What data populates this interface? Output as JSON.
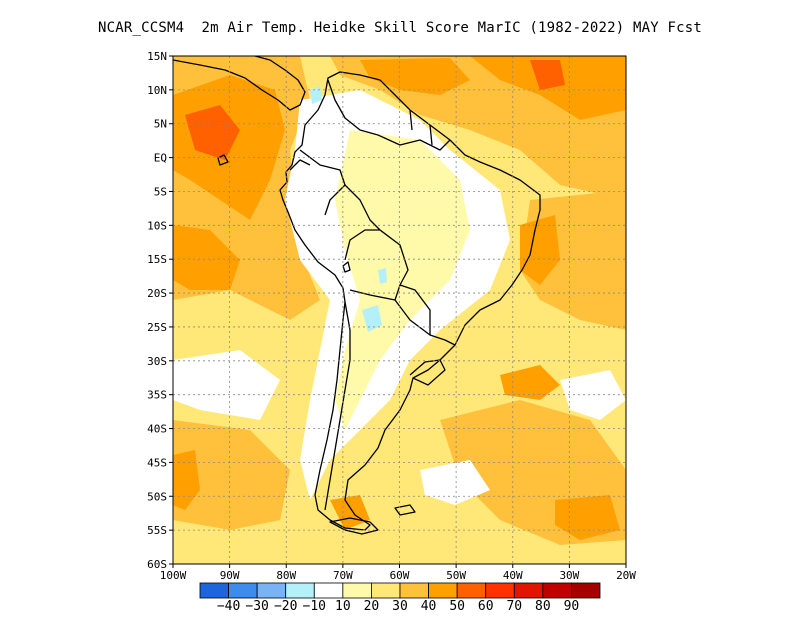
{
  "title": "NCAR_CCSM4  2m Air Temp. Heidke Skill Score MarIC (1982-2022) MAY Fcst",
  "map": {
    "lat_labels": [
      {
        "lat": 15,
        "text": "15N"
      },
      {
        "lat": 10,
        "text": "10N"
      },
      {
        "lat": 5,
        "text": "5N"
      },
      {
        "lat": 0,
        "text": "EQ"
      },
      {
        "lat": -5,
        "text": "5S"
      },
      {
        "lat": -10,
        "text": "10S"
      },
      {
        "lat": -15,
        "text": "15S"
      },
      {
        "lat": -20,
        "text": "20S"
      },
      {
        "lat": -25,
        "text": "25S"
      },
      {
        "lat": -30,
        "text": "30S"
      },
      {
        "lat": -35,
        "text": "35S"
      },
      {
        "lat": -40,
        "text": "40S"
      },
      {
        "lat": -45,
        "text": "45S"
      },
      {
        "lat": -50,
        "text": "50S"
      },
      {
        "lat": -55,
        "text": "55S"
      },
      {
        "lat": -60,
        "text": "60S"
      }
    ],
    "lon_labels": [
      {
        "lon": -100,
        "text": "100W"
      },
      {
        "lon": -90,
        "text": "90W"
      },
      {
        "lon": -80,
        "text": "80W"
      },
      {
        "lon": -70,
        "text": "70W"
      },
      {
        "lon": -60,
        "text": "60W"
      },
      {
        "lon": -50,
        "text": "50W"
      },
      {
        "lon": -40,
        "text": "40W"
      },
      {
        "lon": -30,
        "text": "30W"
      },
      {
        "lon": -20,
        "text": "20W"
      }
    ],
    "extent": {
      "lon_min": -100,
      "lon_max": -20,
      "lat_min": -60,
      "lat_max": 15
    }
  },
  "colorbar": {
    "colors": [
      "#1e64dc",
      "#3c8cf0",
      "#78b4f5",
      "#b4f0fa",
      "#ffffff",
      "#fffaaa",
      "#ffe878",
      "#ffc03c",
      "#ffa000",
      "#ff6000",
      "#ff3200",
      "#e11400",
      "#c00000",
      "#a50000"
    ],
    "labels": [
      "-40",
      "-30",
      "-20",
      "-10",
      "10",
      "20",
      "30",
      "40",
      "50",
      "60",
      "70",
      "80",
      "90"
    ]
  },
  "field_colors": {
    "white": "#ffffff",
    "light_yellow": "#fffaaa",
    "yellow": "#ffe878",
    "light_orange": "#ffc03c",
    "orange": "#ffa000",
    "dark_orange": "#ff6000",
    "light_blue": "#b4f0fa",
    "land_border": "#000000"
  }
}
